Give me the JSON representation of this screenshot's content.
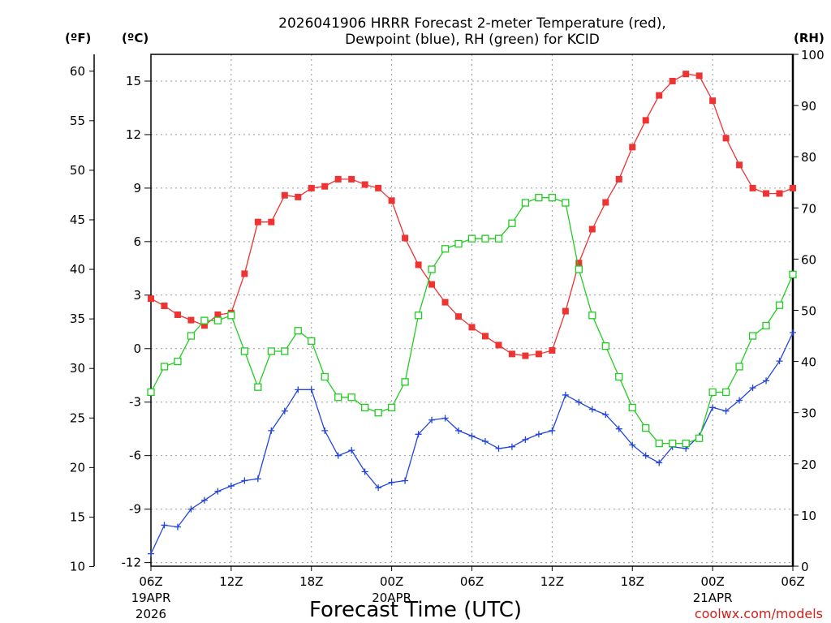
{
  "header": {
    "title_line1": "2026041906 HRRR Forecast 2-meter Temperature (red),",
    "title_line2": "Dewpoint (blue), RH (green) for KCID",
    "unit_f": "(ºF)",
    "unit_c": "(ºC)",
    "unit_rh": "(RH)"
  },
  "footer": {
    "xlabel": "Forecast Time (UTC)",
    "credit": "coolwx.com/models"
  },
  "colors": {
    "temperature": "#ee3333",
    "dewpoint": "#2244dd",
    "rh": "#22cc22"
  },
  "chart_data": {
    "type": "line",
    "x_hours_from_start": [
      0,
      1,
      2,
      3,
      4,
      5,
      6,
      7,
      8,
      9,
      10,
      11,
      12,
      13,
      14,
      15,
      16,
      17,
      18,
      19,
      20,
      21,
      22,
      23,
      24,
      25,
      26,
      27,
      28,
      29,
      30,
      31,
      32,
      33,
      34,
      35,
      36,
      37,
      38,
      39,
      40,
      41,
      42,
      43,
      44,
      45,
      46,
      47,
      48
    ],
    "x_ticks": [
      {
        "hour": 0,
        "label": "06Z",
        "sub": "19APR",
        "sub2": "2026"
      },
      {
        "hour": 6,
        "label": "12Z"
      },
      {
        "hour": 12,
        "label": "18Z"
      },
      {
        "hour": 18,
        "label": "00Z",
        "sub": "20APR"
      },
      {
        "hour": 24,
        "label": "06Z"
      },
      {
        "hour": 30,
        "label": "12Z"
      },
      {
        "hour": 36,
        "label": "18Z"
      },
      {
        "hour": 42,
        "label": "00Z",
        "sub": "21APR"
      },
      {
        "hour": 48,
        "label": "06Z"
      }
    ],
    "y_celsius_ticks": [
      "-12",
      "-9",
      "-6",
      "-3",
      "0",
      "3",
      "6",
      "9",
      "12",
      "15"
    ],
    "y_fahrenheit_ticks": [
      "10",
      "15",
      "20",
      "25",
      "30",
      "35",
      "40",
      "45",
      "50",
      "55",
      "60"
    ],
    "y_rh_ticks": [
      "0",
      "10",
      "20",
      "30",
      "40",
      "50",
      "60",
      "70",
      "80",
      "90",
      "100"
    ],
    "ylim_celsius": [
      -12.2,
      16.5
    ],
    "ylim_rh": [
      0,
      100
    ],
    "series": [
      {
        "key": "temperature",
        "axis": "celsius",
        "values": [
          2.8,
          2.4,
          1.9,
          1.6,
          1.3,
          1.9,
          2.0,
          4.2,
          7.1,
          7.1,
          8.6,
          8.5,
          9.0,
          9.1,
          9.5,
          9.5,
          9.2,
          9.0,
          8.3,
          6.2,
          4.7,
          3.6,
          2.6,
          1.8,
          1.2,
          0.7,
          0.2,
          -0.3,
          -0.4,
          -0.3,
          -0.1,
          2.1,
          4.8,
          6.7,
          8.2,
          9.5,
          11.3,
          12.8,
          14.2,
          15.0,
          15.4,
          15.3,
          13.9,
          11.8,
          10.3,
          9.0,
          8.7,
          8.7,
          9.0
        ]
      },
      {
        "key": "dewpoint",
        "axis": "celsius",
        "values": [
          -11.5,
          -9.9,
          -10.0,
          -9.0,
          -8.5,
          -8.0,
          -7.7,
          -7.4,
          -7.3,
          -4.6,
          -3.5,
          -2.3,
          -2.3,
          -4.6,
          -6.0,
          -5.7,
          -6.9,
          -7.8,
          -7.5,
          -7.4,
          -4.8,
          -4.0,
          -3.9,
          -4.6,
          -4.9,
          -5.2,
          -5.6,
          -5.5,
          -5.1,
          -4.8,
          -4.6,
          -2.6,
          -3.0,
          -3.4,
          -3.7,
          -4.5,
          -5.4,
          -6.0,
          -6.4,
          -5.5,
          -5.6,
          -4.9,
          -3.3,
          -3.5,
          -2.9,
          -2.2,
          -1.8,
          -0.7,
          0.9
        ]
      },
      {
        "key": "rh",
        "axis": "rh",
        "values": [
          34,
          39,
          40,
          45,
          48,
          48,
          49,
          42,
          35,
          42,
          42,
          46,
          44,
          37,
          33,
          33,
          31,
          30,
          31,
          36,
          49,
          58,
          62,
          63,
          64,
          64,
          64,
          67,
          71,
          72,
          72,
          71,
          58,
          49,
          43,
          37,
          31,
          27,
          24,
          24,
          24,
          25,
          34,
          34,
          39,
          45,
          47,
          51,
          57
        ]
      }
    ]
  }
}
